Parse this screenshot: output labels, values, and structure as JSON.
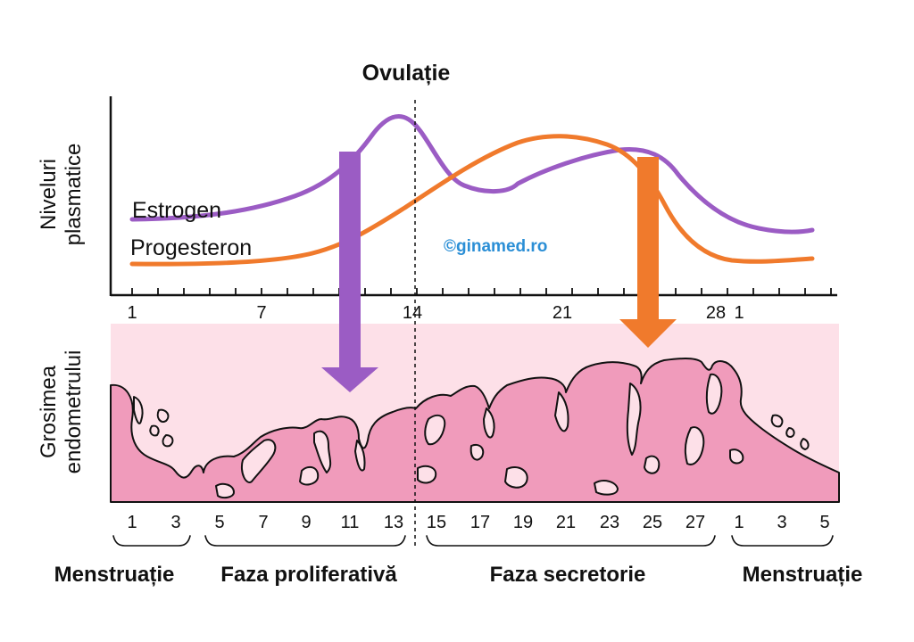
{
  "title": "Ovulație",
  "top_axis_label": [
    "Niveluri",
    "plasmatice"
  ],
  "bottom_axis_label": [
    "Grosimea",
    "endometrului"
  ],
  "series": [
    {
      "name": "Estrogen",
      "color": "#9b5cc4"
    },
    {
      "name": "Progesteron",
      "color": "#f07a2c"
    }
  ],
  "watermark": "©ginamed.ro",
  "top_ticks": [
    "1",
    "7",
    "14",
    "21",
    "28",
    "1"
  ],
  "bottom_ticks": [
    "1",
    "3",
    "5",
    "7",
    "9",
    "11",
    "13",
    "15",
    "17",
    "19",
    "21",
    "23",
    "25",
    "27",
    "1",
    "3",
    "5"
  ],
  "phases": [
    "Menstruație",
    "Faza proliferativă",
    "Faza secretorie",
    "Menstruație"
  ],
  "colors": {
    "estrogen": "#9b5cc4",
    "progesterone": "#f07a2c",
    "endometrium_background": "#fde0e8",
    "endometrium_tissue": "#f09bbb",
    "watermark": "#2b8fd6"
  }
}
